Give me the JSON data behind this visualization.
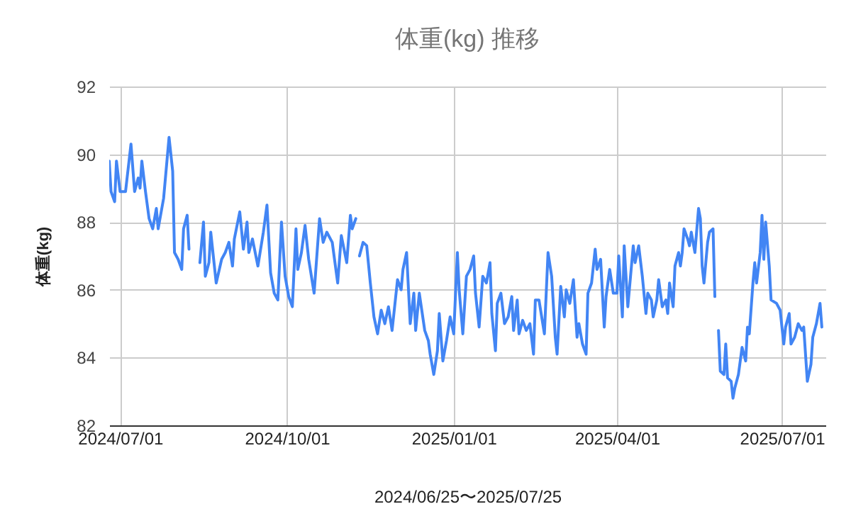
{
  "chart_data": {
    "type": "line",
    "title": "体重(kg) 推移",
    "xlabel": "2024/06/25〜2025/07/25",
    "ylabel": "体重(kg)",
    "x": [
      "2024-06-25",
      "2024-06-26",
      "2024-06-28",
      "2024-06-29",
      "2024-07-01",
      "2024-07-04",
      "2024-07-07",
      "2024-07-09",
      "2024-07-11",
      "2024-07-12",
      "2024-07-13",
      "2024-07-15",
      "2024-07-17",
      "2024-07-19",
      "2024-07-21",
      "2024-07-22",
      "2024-07-25",
      "2024-07-28",
      "2024-07-30",
      "2024-07-31",
      "2024-08-02",
      "2024-08-04",
      "2024-08-05",
      "2024-08-07",
      "2024-08-08",
      "2024-08-11",
      "2024-08-14",
      "2024-08-16",
      "2024-08-17",
      "2024-08-19",
      "2024-08-20",
      "2024-08-23",
      "2024-08-26",
      "2024-08-28",
      "2024-08-30",
      "2024-09-01",
      "2024-09-02",
      "2024-09-05",
      "2024-09-07",
      "2024-09-09",
      "2024-09-10",
      "2024-09-12",
      "2024-09-15",
      "2024-09-18",
      "2024-09-20",
      "2024-09-22",
      "2024-09-24",
      "2024-09-26",
      "2024-09-28",
      "2024-09-30",
      "2024-10-02",
      "2024-10-04",
      "2024-10-06",
      "2024-10-07",
      "2024-10-09",
      "2024-10-11",
      "2024-10-13",
      "2024-10-16",
      "2024-10-19",
      "2024-10-21",
      "2024-10-23",
      "2024-10-26",
      "2024-10-29",
      "2024-10-31",
      "2024-11-03",
      "2024-11-05",
      "2024-11-06",
      "2024-11-08",
      "2024-11-09",
      "2024-11-10",
      "2024-11-12",
      "2024-11-14",
      "2024-11-16",
      "2024-11-18",
      "2024-11-20",
      "2024-11-22",
      "2024-11-24",
      "2024-11-26",
      "2024-11-28",
      "2024-12-01",
      "2024-12-03",
      "2024-12-04",
      "2024-12-06",
      "2024-12-08",
      "2024-12-10",
      "2024-12-11",
      "2024-12-13",
      "2024-12-16",
      "2024-12-18",
      "2024-12-19",
      "2024-12-21",
      "2024-12-23",
      "2024-12-24",
      "2024-12-26",
      "2024-12-28",
      "2024-12-30",
      "2025-01-01",
      "2025-01-03",
      "2025-01-04",
      "2025-01-06",
      "2025-01-08",
      "2025-01-10",
      "2025-01-12",
      "2025-01-13",
      "2025-01-15",
      "2025-01-17",
      "2025-01-19",
      "2025-01-21",
      "2025-01-22",
      "2025-01-24",
      "2025-01-25",
      "2025-01-27",
      "2025-01-29",
      "2025-01-31",
      "2025-02-02",
      "2025-02-03",
      "2025-02-05",
      "2025-02-06",
      "2025-02-08",
      "2025-02-10",
      "2025-02-12",
      "2025-02-14",
      "2025-02-15",
      "2025-02-17",
      "2025-02-20",
      "2025-02-22",
      "2025-02-24",
      "2025-02-26",
      "2025-02-27",
      "2025-03-01",
      "2025-03-03",
      "2025-03-04",
      "2025-03-06",
      "2025-03-08",
      "2025-03-10",
      "2025-03-11",
      "2025-03-13",
      "2025-03-15",
      "2025-03-16",
      "2025-03-18",
      "2025-03-20",
      "2025-03-21",
      "2025-03-23",
      "2025-03-25",
      "2025-03-26",
      "2025-03-28",
      "2025-03-30",
      "2025-04-01",
      "2025-04-02",
      "2025-04-04",
      "2025-04-05",
      "2025-04-07",
      "2025-04-10",
      "2025-04-11",
      "2025-04-13",
      "2025-04-15",
      "2025-04-17",
      "2025-04-18",
      "2025-04-20",
      "2025-04-21",
      "2025-04-23",
      "2025-04-24",
      "2025-04-26",
      "2025-04-28",
      "2025-04-29",
      "2025-04-30",
      "2025-05-02",
      "2025-05-03",
      "2025-05-05",
      "2025-05-06",
      "2025-05-07",
      "2025-05-08",
      "2025-05-10",
      "2025-05-11",
      "2025-05-12",
      "2025-05-14",
      "2025-05-16",
      "2025-05-17",
      "2025-05-18",
      "2025-05-19",
      "2025-05-21",
      "2025-05-22",
      "2025-05-24",
      "2025-05-25",
      "2025-05-26",
      "2025-05-27",
      "2025-05-28",
      "2025-05-30",
      "2025-05-31",
      "2025-06-01",
      "2025-06-03",
      "2025-06-04",
      "2025-06-05",
      "2025-06-07",
      "2025-06-09",
      "2025-06-11",
      "2025-06-12",
      "2025-06-13",
      "2025-06-15",
      "2025-06-16",
      "2025-06-17",
      "2025-06-19",
      "2025-06-20",
      "2025-06-21",
      "2025-06-22",
      "2025-06-24",
      "2025-06-25",
      "2025-06-28",
      "2025-06-30",
      "2025-07-02",
      "2025-07-03",
      "2025-07-05",
      "2025-07-06",
      "2025-07-08",
      "2025-07-10",
      "2025-07-12",
      "2025-07-13",
      "2025-07-15",
      "2025-07-17",
      "2025-07-18",
      "2025-07-20",
      "2025-07-22",
      "2025-07-23"
    ],
    "series": [
      {
        "color": "#4285f4",
        "values": [
          89.8,
          88.9,
          88.6,
          89.8,
          88.9,
          88.9,
          90.3,
          88.9,
          89.3,
          89.0,
          89.8,
          88.9,
          88.1,
          87.8,
          88.4,
          87.8,
          88.7,
          90.5,
          89.5,
          87.1,
          86.9,
          86.6,
          87.8,
          88.2,
          87.2,
          null,
          86.8,
          88.0,
          86.4,
          86.8,
          87.7,
          86.2,
          86.9,
          87.1,
          87.4,
          86.7,
          87.5,
          88.3,
          87.2,
          88.0,
          87.1,
          87.5,
          86.7,
          87.7,
          88.5,
          86.5,
          85.9,
          85.7,
          88.0,
          86.4,
          85.8,
          85.5,
          87.8,
          86.6,
          87.1,
          87.9,
          86.9,
          85.9,
          88.1,
          87.4,
          87.7,
          87.4,
          86.2,
          87.6,
          86.8,
          88.2,
          87.8,
          88.1,
          null,
          87.0,
          87.4,
          87.3,
          86.2,
          85.2,
          84.7,
          85.4,
          85.0,
          85.5,
          84.8,
          86.3,
          86.0,
          86.6,
          87.1,
          85.0,
          85.9,
          84.8,
          85.9,
          84.8,
          84.5,
          84.1,
          83.5,
          84.2,
          85.3,
          83.9,
          84.5,
          85.2,
          84.7,
          87.1,
          86.0,
          84.7,
          86.4,
          86.6,
          87.0,
          85.9,
          84.9,
          86.4,
          86.2,
          86.8,
          85.3,
          84.2,
          85.6,
          85.9,
          85.0,
          85.2,
          85.8,
          84.8,
          85.7,
          84.7,
          85.1,
          84.8,
          85.0,
          84.1,
          85.7,
          85.7,
          84.7,
          87.1,
          86.4,
          84.6,
          84.1,
          86.1,
          85.2,
          86.0,
          85.6,
          86.3,
          84.6,
          85.0,
          84.4,
          84.1,
          85.9,
          86.2,
          87.2,
          86.6,
          86.9,
          84.9,
          85.8,
          86.6,
          85.9,
          85.9,
          87.0,
          85.2,
          87.3,
          85.5,
          87.3,
          86.8,
          87.3,
          86.4,
          85.3,
          85.9,
          85.7,
          85.2,
          85.7,
          86.3,
          85.5,
          85.7,
          85.3,
          86.2,
          85.5,
          86.7,
          87.1,
          86.7,
          87.1,
          87.8,
          87.5,
          87.3,
          87.7,
          87.1,
          88.4,
          88.1,
          86.7,
          86.2,
          87.4,
          87.7,
          87.8,
          85.8,
          null,
          84.8,
          83.6,
          83.5,
          84.4,
          83.4,
          83.3,
          82.8,
          83.1,
          83.5,
          84.3,
          83.9,
          84.9,
          84.7,
          86.2,
          86.8,
          86.2,
          87.1,
          88.2,
          86.9,
          88.0,
          86.7,
          85.7,
          85.6,
          85.4,
          84.4,
          84.9,
          85.3,
          84.4,
          84.6,
          85.0,
          84.8,
          84.9,
          83.3,
          83.8,
          84.6,
          85.0,
          85.6,
          84.9
        ]
      }
    ],
    "xlim": [
      "2024-06-25",
      "2025-07-25"
    ],
    "xticks": [
      {
        "value": "2024-07-01",
        "label": "2024/07/01"
      },
      {
        "value": "2024-10-01",
        "label": "2024/10/01"
      },
      {
        "value": "2025-01-01",
        "label": "2025/01/01"
      },
      {
        "value": "2025-04-01",
        "label": "2025/04/01"
      },
      {
        "value": "2025-07-01",
        "label": "2025/07/01"
      }
    ],
    "ylim": [
      82,
      92
    ],
    "yticks": [
      82,
      84,
      86,
      88,
      90,
      92
    ],
    "grid": true,
    "marker": "none",
    "line_style": "solid"
  }
}
